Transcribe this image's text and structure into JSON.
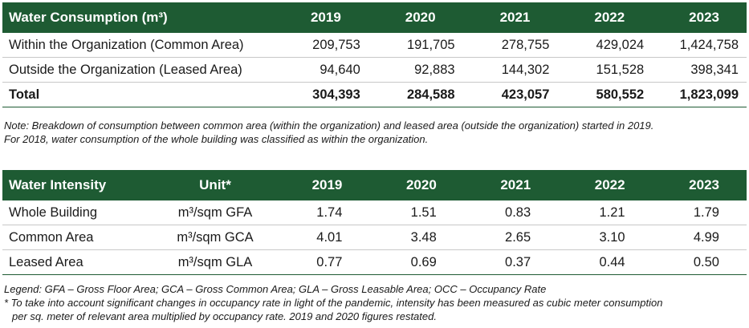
{
  "consumption": {
    "header": "Water Consumption (m³)",
    "years": [
      "2019",
      "2020",
      "2021",
      "2022",
      "2023"
    ],
    "rows": [
      {
        "label": "Within the Organization (Common Area)",
        "values": [
          "209,753",
          "191,705",
          "278,755",
          "429,024",
          "1,424,758"
        ]
      },
      {
        "label": "Outside the Organization (Leased Area)",
        "values": [
          "94,640",
          "92,883",
          "144,302",
          "151,528",
          "398,341"
        ]
      }
    ],
    "total": {
      "label": "Total",
      "values": [
        "304,393",
        "284,588",
        "423,057",
        "580,552",
        "1,823,099"
      ]
    }
  },
  "note1": {
    "line1": "Note: Breakdown of consumption between common area (within the organization) and leased area (outside the organization) started in 2019.",
    "line2": "For 2018, water consumption of the whole building was classified as within the organization."
  },
  "intensity": {
    "header": "Water Intensity",
    "unit_header": "Unit*",
    "years": [
      "2019",
      "2020",
      "2021",
      "2022",
      "2023"
    ],
    "rows": [
      {
        "label": "Whole Building",
        "unit": "m³/sqm GFA",
        "values": [
          "1.74",
          "1.51",
          "0.83",
          "1.21",
          "1.79"
        ]
      },
      {
        "label": "Common Area",
        "unit": "m³/sqm GCA",
        "values": [
          "4.01",
          "3.48",
          "2.65",
          "3.10",
          "4.99"
        ]
      },
      {
        "label": "Leased Area",
        "unit": "m³/sqm GLA",
        "values": [
          "0.77",
          "0.69",
          "0.37",
          "0.44",
          "0.50"
        ]
      }
    ]
  },
  "note2": {
    "legend": "Legend: GFA – Gross Floor Area; GCA – Gross Common Area; GLA – Gross Leasable Area; OCC – Occupancy Rate",
    "footnote_line1": "* To take into account significant changes in occupancy rate in light of the pandemic, intensity has been measured as cubic meter consumption",
    "footnote_line2": "per sq. meter of relevant area multiplied by occupancy rate. 2019 and 2020 figures restated."
  },
  "colors": {
    "header_bg": "#1e5b33",
    "header_text": "#ffffff"
  }
}
